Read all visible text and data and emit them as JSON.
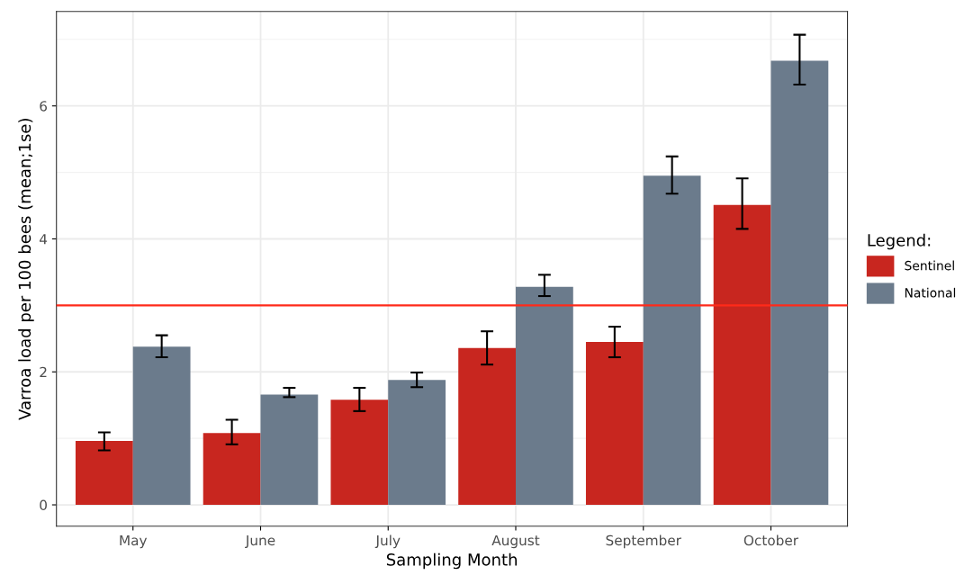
{
  "chart_data": {
    "type": "bar",
    "xlabel": "Sampling Month",
    "ylabel": "Varroa load per 100 bees (mean;1se)",
    "legend_title": "Legend:",
    "categories": [
      "May",
      "June",
      "July",
      "August",
      "September",
      "October"
    ],
    "series": [
      {
        "name": "Sentinel",
        "color": "#c8261f",
        "values": [
          0.96,
          1.08,
          1.58,
          2.36,
          2.45,
          4.51
        ],
        "errors": [
          [
            0.82,
            1.09
          ],
          [
            0.91,
            1.28
          ],
          [
            1.41,
            1.76
          ],
          [
            2.11,
            2.61
          ],
          [
            2.22,
            2.68
          ],
          [
            4.15,
            4.91
          ]
        ]
      },
      {
        "name": "National",
        "color": "#6b7b8c",
        "values": [
          2.38,
          1.66,
          1.88,
          3.28,
          4.95,
          6.68
        ],
        "errors": [
          [
            2.22,
            2.55
          ],
          [
            1.62,
            1.76
          ],
          [
            1.77,
            1.99
          ],
          [
            3.14,
            3.46
          ],
          [
            4.68,
            5.24
          ],
          [
            6.32,
            7.07
          ]
        ]
      }
    ],
    "ylim": [
      -0.32,
      7.42
    ],
    "yticks": [
      0,
      2,
      4,
      6
    ],
    "ref_lines": [
      {
        "axis": "y",
        "value": 3,
        "color": "#ff2a1a"
      }
    ],
    "grid": true,
    "legend": "right"
  }
}
